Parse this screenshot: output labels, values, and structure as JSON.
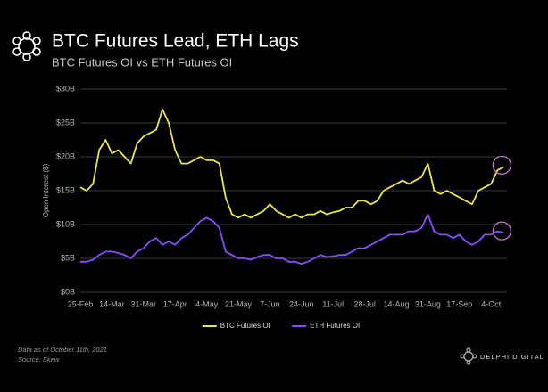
{
  "chart_data": {
    "type": "line",
    "title": "BTC Futures Lead, ETH Lags",
    "subtitle": "BTC Futures OI vs ETH Futures OI",
    "y_label": "Open Interest ($)",
    "footnote": "Data as of October 11th, 2021",
    "source": "Source: Skew",
    "brand": "DELPHI DIGITAL",
    "legend": "bottom",
    "grid": true,
    "ylim": [
      0,
      30
    ],
    "yticks": [
      {
        "value": 0,
        "label": "$0B"
      },
      {
        "value": 5,
        "label": "$5B"
      },
      {
        "value": 10,
        "label": "$10B"
      },
      {
        "value": 15,
        "label": "$15B"
      },
      {
        "value": 20,
        "label": "$20B"
      },
      {
        "value": 25,
        "label": "$25B"
      },
      {
        "value": 30,
        "label": "$30B"
      }
    ],
    "categories": [
      "25-Feb",
      null,
      null,
      null,
      null,
      "14-Mar",
      null,
      null,
      null,
      null,
      "31-Mar",
      null,
      null,
      null,
      null,
      "17-Apr",
      null,
      null,
      null,
      null,
      "4-May",
      null,
      null,
      null,
      null,
      "21-May",
      null,
      null,
      null,
      null,
      "7-Jun",
      null,
      null,
      null,
      null,
      "24-Jun",
      null,
      null,
      null,
      null,
      "11-Jul",
      null,
      null,
      null,
      null,
      "28-Jul",
      null,
      null,
      null,
      null,
      "14-Aug",
      null,
      null,
      null,
      null,
      "31-Aug",
      null,
      null,
      null,
      null,
      "17-Sep",
      null,
      null,
      null,
      null,
      "4-Oct",
      null,
      null
    ],
    "series": [
      {
        "name": "BTC Futures OI",
        "color": "#e6e64c",
        "values": [
          15.5,
          15,
          16,
          21,
          22.5,
          20.5,
          21,
          20,
          19,
          22,
          23,
          23.5,
          24,
          27,
          25,
          21,
          19,
          19,
          19.5,
          20,
          19.5,
          19.5,
          19,
          14,
          11.5,
          11,
          11.5,
          11,
          11.5,
          12,
          13,
          12,
          11.5,
          11,
          11.5,
          11,
          11.5,
          11.5,
          12,
          11.5,
          11.8,
          12,
          12.5,
          12.5,
          13.5,
          13.5,
          13,
          13.5,
          15,
          15.5,
          16,
          16.5,
          16,
          16.5,
          17,
          19,
          15,
          14.5,
          15,
          14.5,
          14,
          13.5,
          13,
          15,
          15.5,
          16,
          18,
          18.5
        ]
      },
      {
        "name": "ETH Futures OI",
        "color": "#8a4dff",
        "values": [
          4.5,
          4.5,
          4.8,
          5.5,
          6,
          6,
          5.8,
          5.5,
          5,
          6,
          6.5,
          7.5,
          8,
          7,
          7.5,
          7,
          8,
          8.5,
          9.5,
          10.5,
          11,
          10.5,
          9.5,
          6,
          5.5,
          5,
          5,
          4.8,
          5.2,
          5.5,
          5.5,
          5,
          5,
          4.5,
          4.5,
          4.2,
          4.5,
          5,
          5.5,
          5.2,
          5.3,
          5.5,
          5.5,
          6,
          6.5,
          6.5,
          7,
          7.5,
          8,
          8.5,
          8.5,
          8.5,
          9,
          9,
          9.5,
          11.5,
          9,
          8.5,
          8.5,
          8,
          8.5,
          7.5,
          7,
          7.5,
          8.5,
          8.5,
          9,
          8.8
        ]
      }
    ]
  }
}
